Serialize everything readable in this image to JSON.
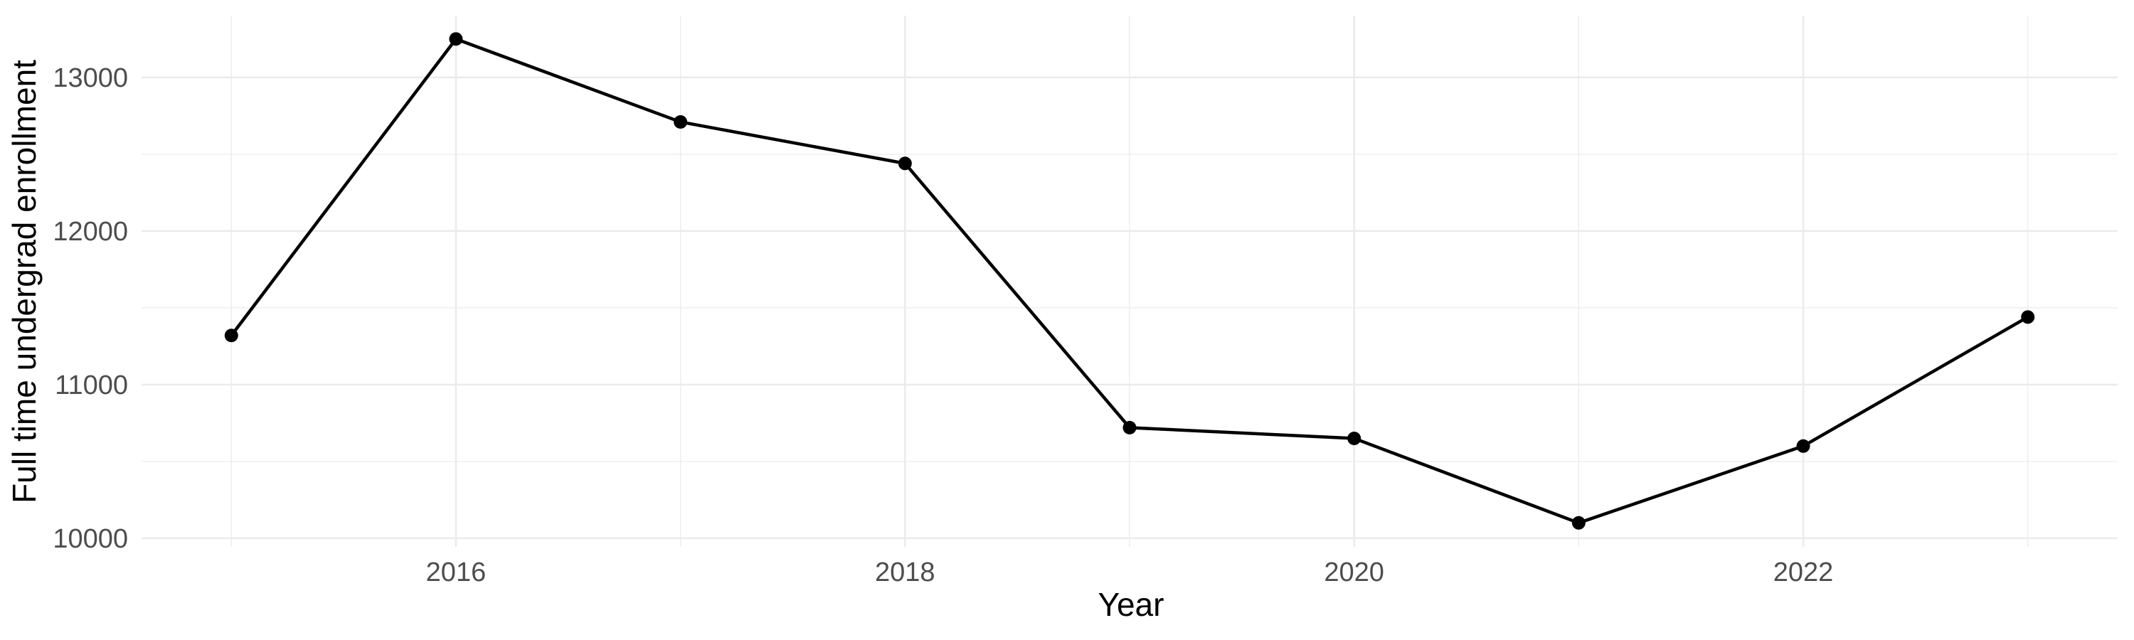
{
  "chart_data": {
    "type": "line",
    "title": "",
    "xlabel": "Year",
    "ylabel": "Full time undergrad enrollment",
    "x": [
      2015,
      2016,
      2017,
      2018,
      2019,
      2020,
      2021,
      2022,
      2023
    ],
    "series": [
      {
        "name": "Full time undergrad enrollment",
        "values": [
          11320,
          13250,
          12710,
          12440,
          10720,
          10650,
          10100,
          10600,
          11440
        ]
      }
    ],
    "x_major_ticks": [
      2016,
      2018,
      2020,
      2022
    ],
    "x_minor_gridlines": [
      2015,
      2017,
      2019,
      2021,
      2023
    ],
    "y_major_ticks": [
      10000,
      11000,
      12000,
      13000
    ],
    "y_minor_gridlines": [
      10500,
      11500,
      12500
    ],
    "xlim": [
      2014.6,
      2023.4
    ],
    "ylim": [
      9944,
      13402
    ],
    "grid": true,
    "legend": false,
    "marker": "filled-circle",
    "colors": {
      "line": "#000000",
      "point": "#000000",
      "grid_major": "#EBEBEB",
      "grid_minor": "#EBEBEB",
      "tick_label": "#4D4D4D",
      "axis_title": "#000000",
      "background": "#FFFFFF"
    }
  }
}
